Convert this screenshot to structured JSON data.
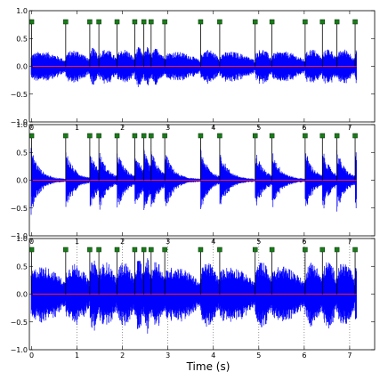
{
  "chart_data": {
    "type": "line",
    "xlabel": "Time (s)",
    "xlim": [
      -0.05,
      7.55
    ],
    "ylim": [
      -1.0,
      1.0
    ],
    "xticks": [
      0,
      1,
      2,
      3,
      4,
      5,
      6,
      7
    ],
    "yticks": [
      1.0,
      0.5,
      0.0,
      -0.5,
      -1.0
    ],
    "ytick_labels": [
      "1.0",
      "0.5",
      "0.0",
      "−0.5",
      "−1.0"
    ],
    "colors": {
      "waveform": "#0000ff",
      "baseline": "#ff2020",
      "marker_fill": "#1a7a1a",
      "stem": "#000000",
      "reference_line": "#555555"
    },
    "marker_y": 0.8,
    "waveform_end": 7.15,
    "panels": [
      {
        "id": "top",
        "onsets": [
          0.0,
          0.75,
          1.28,
          1.48,
          1.88,
          2.27,
          2.47,
          2.63,
          2.93,
          3.72,
          4.14,
          4.92,
          5.29,
          6.02,
          6.4,
          6.72,
          7.12
        ],
        "envelope": "sustained",
        "amplitude": 0.4,
        "reference_lines": []
      },
      {
        "id": "middle",
        "onsets": [
          0.0,
          0.75,
          1.28,
          1.48,
          1.88,
          2.27,
          2.47,
          2.63,
          2.93,
          3.72,
          4.14,
          4.92,
          5.29,
          6.02,
          6.4,
          6.72,
          7.12
        ],
        "envelope": "decaying",
        "amplitude": 0.55,
        "reference_lines": []
      },
      {
        "id": "bottom",
        "onsets": [
          0.0,
          0.75,
          1.28,
          1.48,
          1.88,
          2.27,
          2.47,
          2.63,
          2.93,
          3.72,
          4.14,
          4.92,
          5.29,
          6.02,
          6.4,
          6.72,
          7.12
        ],
        "envelope": "sustained",
        "amplitude": 0.75,
        "reference_lines": [
          1,
          2,
          3,
          4,
          5,
          6,
          7
        ]
      }
    ]
  }
}
